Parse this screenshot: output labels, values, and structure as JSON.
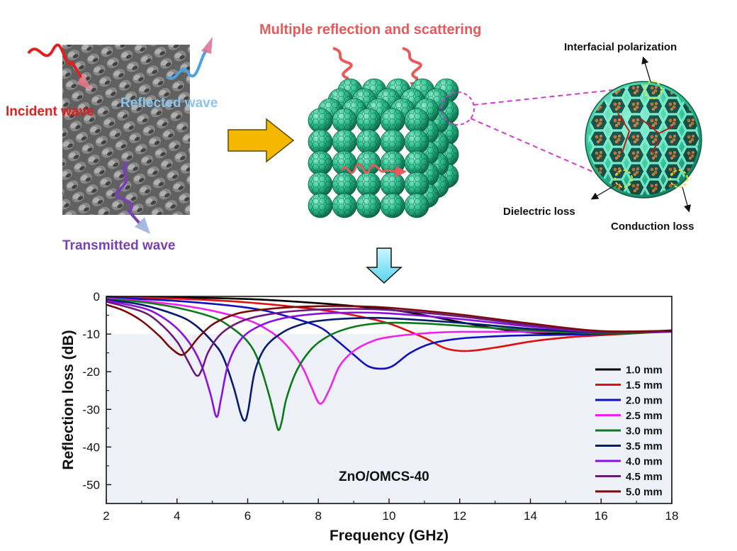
{
  "schematic": {
    "heading": "Multiple reflection and scattering",
    "incident": "Incident wave",
    "reflected": "Reflected wave",
    "transmitted": "Transmitted wave",
    "interfacial": "Interfacial polarization",
    "dielectric": "Dielectric loss",
    "conduction": "Conduction loss",
    "colors": {
      "incident": "#e02020",
      "reflected": "#4aa3df",
      "transmitted": "#7a3fb5",
      "heading": "#e85a5a",
      "sphere": "#2fbf8f",
      "arrow": "#f5b800",
      "down_arrow": "#8fe6f5"
    }
  },
  "chart_data": {
    "type": "line",
    "title": "ZnO/OMCS-40",
    "xlabel": "Frequency (GHz)",
    "ylabel": "Reflection loss (dB)",
    "xlim": [
      2,
      18
    ],
    "ylim": [
      -55,
      0
    ],
    "xticks": [
      2,
      4,
      6,
      8,
      10,
      12,
      14,
      16,
      18
    ],
    "yticks": [
      0,
      -10,
      -20,
      -30,
      -40,
      -50
    ],
    "shaded_threshold": -10,
    "legend_position": "right",
    "series": [
      {
        "name": "1.0 mm",
        "color": "#000000",
        "x": [
          2,
          4,
          6,
          8,
          10,
          11,
          12,
          13,
          14,
          15,
          16,
          17,
          18
        ],
        "y": [
          -0.1,
          -0.3,
          -0.7,
          -1.8,
          -3.5,
          -5.0,
          -6.8,
          -8.5,
          -9.6,
          -10.0,
          -10.0,
          -9.6,
          -9.0
        ]
      },
      {
        "name": "1.5 mm",
        "color": "#e01010",
        "x": [
          2,
          4,
          6,
          8,
          9,
          10,
          11,
          11.6,
          12.2,
          13,
          14,
          15,
          16,
          17,
          18
        ],
        "y": [
          -0.2,
          -0.6,
          -1.6,
          -3.5,
          -5.0,
          -7.2,
          -11.0,
          -13.8,
          -14.5,
          -13.6,
          -12.0,
          -10.9,
          -10.3,
          -9.8,
          -9.2
        ]
      },
      {
        "name": "2.0 mm",
        "color": "#1010c0",
        "x": [
          2,
          4,
          6,
          7,
          8,
          8.5,
          9,
          9.4,
          9.75,
          10.1,
          10.6,
          11.2,
          12,
          13,
          14,
          16,
          18
        ],
        "y": [
          -0.3,
          -1.2,
          -3.0,
          -5.0,
          -8.0,
          -11.5,
          -15.5,
          -18.5,
          -19.2,
          -18.5,
          -15.0,
          -12.5,
          -11.2,
          -10.6,
          -10.3,
          -10.0,
          -9.2
        ]
      },
      {
        "name": "2.5 mm",
        "color": "#ee22ee",
        "x": [
          2,
          3,
          4,
          5,
          6,
          6.5,
          7,
          7.5,
          7.8,
          8.05,
          8.3,
          8.6,
          9,
          9.5,
          10,
          11,
          12,
          14,
          16,
          18
        ],
        "y": [
          -0.5,
          -1.2,
          -2.2,
          -3.8,
          -6.3,
          -8.5,
          -12.0,
          -18.0,
          -24.0,
          -28.5,
          -25.0,
          -18.5,
          -14.5,
          -12.0,
          -10.8,
          -9.8,
          -9.4,
          -9.4,
          -9.5,
          -9.2
        ]
      },
      {
        "name": "3.0 mm",
        "color": "#0a7a1a",
        "x": [
          2,
          3,
          4,
          5,
          5.5,
          6,
          6.3,
          6.6,
          6.8,
          6.88,
          6.97,
          7.1,
          7.4,
          7.8,
          8.2,
          8.6,
          9.2,
          10,
          11,
          12,
          14,
          16,
          18
        ],
        "y": [
          -0.7,
          -1.5,
          -3.0,
          -5.5,
          -8.0,
          -12.0,
          -17.0,
          -26.0,
          -33.5,
          -35.5,
          -33.0,
          -27.0,
          -19.5,
          -14.0,
          -11.0,
          -9.2,
          -7.7,
          -7.0,
          -7.2,
          -7.8,
          -9.0,
          -9.8,
          -9.4
        ]
      },
      {
        "name": "3.5 mm",
        "color": "#0a1a6e",
        "x": [
          2,
          3,
          4,
          4.5,
          5,
          5.3,
          5.6,
          5.8,
          5.92,
          6.02,
          6.2,
          6.5,
          7,
          7.5,
          8,
          9,
          10,
          12,
          14,
          16,
          18
        ],
        "y": [
          -0.9,
          -2.2,
          -5.0,
          -7.5,
          -12.0,
          -16.0,
          -24.0,
          -31.0,
          -33.0,
          -30.0,
          -20.0,
          -13.5,
          -9.5,
          -7.5,
          -6.5,
          -5.8,
          -5.8,
          -7.0,
          -8.6,
          -9.6,
          -9.3
        ]
      },
      {
        "name": "4.0 mm",
        "color": "#8a10e0",
        "x": [
          2,
          3,
          3.5,
          4,
          4.4,
          4.7,
          4.95,
          5.12,
          5.25,
          5.45,
          5.8,
          6.3,
          7,
          8,
          9,
          10,
          12,
          14,
          16,
          18
        ],
        "y": [
          -1.1,
          -3.0,
          -5.0,
          -8.5,
          -13.0,
          -18.5,
          -26.0,
          -32.0,
          -27.0,
          -18.0,
          -11.5,
          -8.0,
          -5.8,
          -4.6,
          -4.3,
          -4.5,
          -6.0,
          -8.0,
          -9.5,
          -9.3
        ]
      },
      {
        "name": "4.5 mm",
        "color": "#6a1a7a",
        "x": [
          2,
          3,
          3.5,
          4,
          4.3,
          4.55,
          4.7,
          4.9,
          5.3,
          6,
          7,
          8,
          9,
          10,
          12,
          14,
          16,
          18
        ],
        "y": [
          -1.4,
          -4.0,
          -7.0,
          -12.0,
          -17.0,
          -21.0,
          -19.5,
          -14.5,
          -9.5,
          -6.0,
          -4.2,
          -3.5,
          -3.3,
          -3.6,
          -5.3,
          -7.6,
          -9.4,
          -9.2
        ]
      },
      {
        "name": "5.0 mm",
        "color": "#7a0a0a",
        "x": [
          2,
          2.5,
          3,
          3.5,
          3.8,
          4.1,
          4.3,
          4.6,
          5,
          5.5,
          6,
          7,
          8,
          9,
          10,
          12,
          14,
          16,
          18
        ],
        "y": [
          -2.2,
          -3.8,
          -6.5,
          -10.5,
          -13.5,
          -15.5,
          -14.5,
          -11.0,
          -7.5,
          -5.2,
          -4.0,
          -3.0,
          -2.6,
          -2.6,
          -3.0,
          -4.8,
          -7.2,
          -9.2,
          -9.1
        ]
      }
    ]
  }
}
